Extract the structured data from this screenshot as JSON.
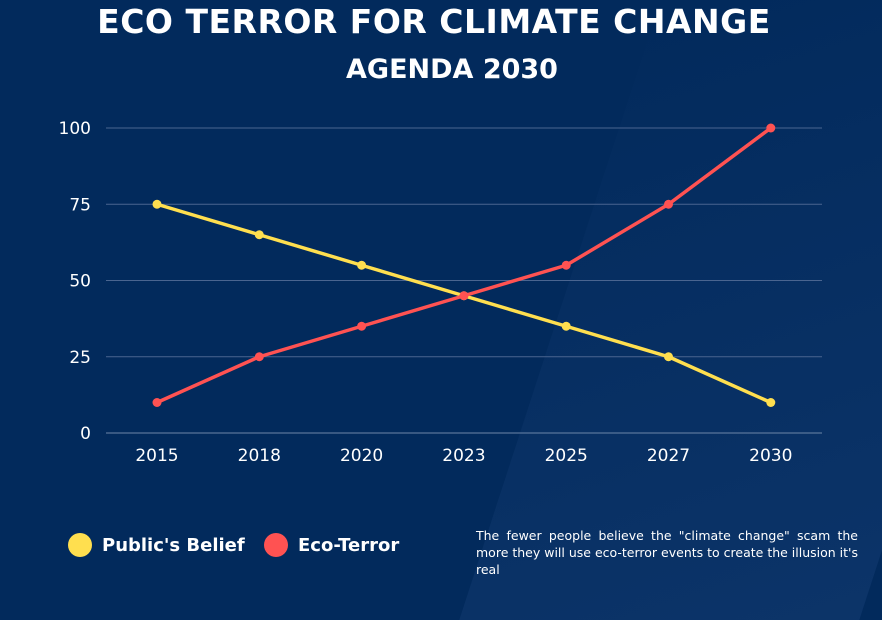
{
  "chart_data": {
    "type": "line",
    "title": "ECO TERROR FOR CLIMATE CHANGE",
    "subtitle": "AGENDA 2030",
    "categories": [
      "2015",
      "2018",
      "2020",
      "2023",
      "2025",
      "2027",
      "2030"
    ],
    "yticks": [
      "0",
      "25",
      "50",
      "75",
      "100"
    ],
    "ylim": [
      0,
      100
    ],
    "grid": true,
    "legend_placement": "bottom-left",
    "series": [
      {
        "name": "Public's Belief",
        "color": "#ffdf4f",
        "values": [
          75,
          65,
          55,
          45,
          35,
          25,
          10
        ]
      },
      {
        "name": "Eco-Terror",
        "color": "#ff5252",
        "values": [
          10,
          25,
          35,
          45,
          55,
          75,
          100
        ]
      }
    ],
    "annotation": "The fewer people believe the \"climate change\" scam the more they will use eco-terror events to create the illusion it's real"
  }
}
